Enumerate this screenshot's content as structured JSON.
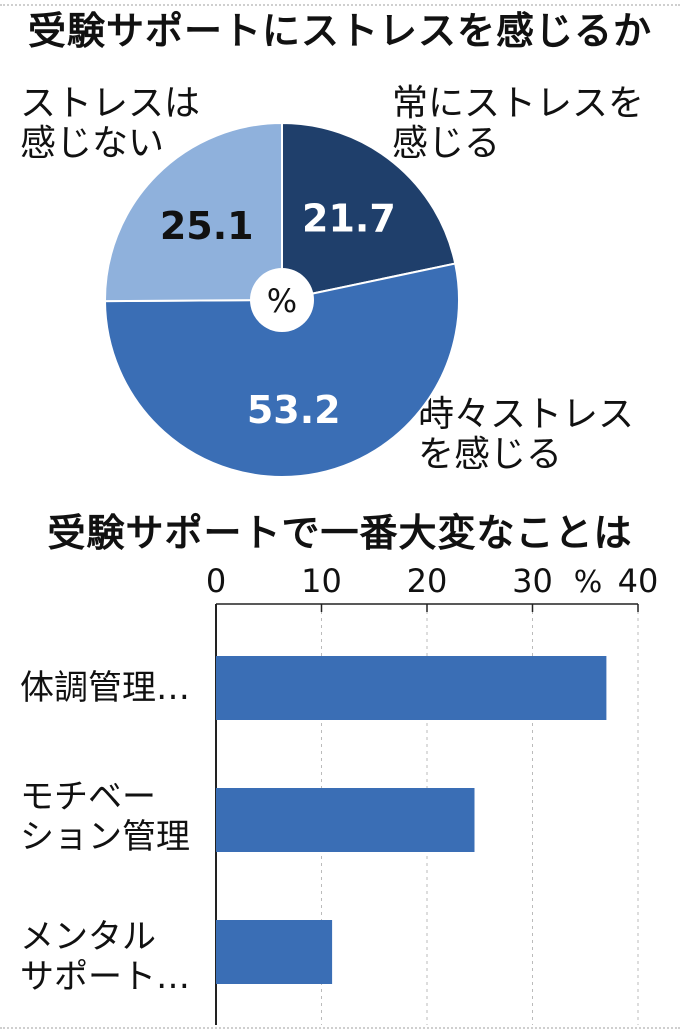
{
  "colors": {
    "dark": "#1f3f6b",
    "mid": "#3a6eb5",
    "light": "#8fb1dc",
    "bar": "#3a6eb5",
    "axis": "#222222",
    "grid": "#bbbbbb"
  },
  "chart_data": [
    {
      "type": "pie",
      "title": "受験サポートにストレスを感じるか",
      "center_label": "%",
      "slices": [
        {
          "label_line1": "常にストレスを",
          "label_line2": "感じる",
          "value": 21.7,
          "value_text": "21.7"
        },
        {
          "label_line1": "時々ストレス",
          "label_line2": "を感じる",
          "value": 53.2,
          "value_text": "53.2"
        },
        {
          "label_line1": "ストレスは",
          "label_line2": "感じない",
          "value": 25.1,
          "value_text": "25.1"
        }
      ]
    },
    {
      "type": "bar",
      "orientation": "horizontal",
      "title": "受験サポートで一番大変なことは",
      "categories": [
        {
          "line1": "体調管理…",
          "line2": ""
        },
        {
          "line1": "モチベー",
          "line2": "ション管理"
        },
        {
          "line1": "メンタル",
          "line2": "サポート…"
        }
      ],
      "values": [
        37,
        24.5,
        11
      ],
      "xlim": [
        0,
        40
      ],
      "ticks": [
        "0",
        "10",
        "20",
        "30",
        "40"
      ],
      "unit": "%"
    }
  ]
}
